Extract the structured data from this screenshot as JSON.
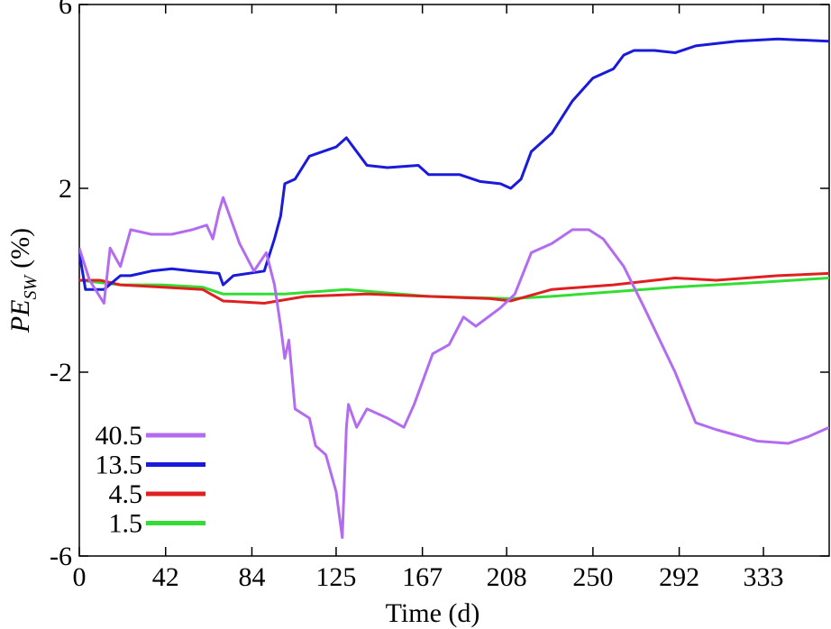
{
  "chart_data": {
    "type": "line",
    "xlabel": "Time (d)",
    "ylabel": {
      "main": "PE",
      "sub": "SW",
      "unit": "(%)"
    },
    "xlim": [
      0,
      365
    ],
    "ylim": [
      -6,
      6
    ],
    "xticks": [
      0,
      42,
      84,
      125,
      167,
      208,
      250,
      292,
      333
    ],
    "yticks": [
      6,
      2,
      -2,
      -6
    ],
    "legend": "lower left",
    "series": [
      {
        "name": "40.5",
        "color": "#b36cf0",
        "x": [
          0,
          5,
          12,
          15,
          20,
          25,
          35,
          45,
          55,
          62,
          65,
          68,
          70,
          74,
          78,
          85,
          91,
          95,
          98,
          100,
          102,
          105,
          112,
          115,
          120,
          125,
          128,
          130,
          131,
          135,
          140,
          150,
          158,
          163,
          172,
          180,
          187,
          193,
          205,
          212,
          220,
          230,
          240,
          248,
          255,
          265,
          275,
          290,
          300,
          310,
          330,
          345,
          355,
          365
        ],
        "values": [
          0.7,
          0.0,
          -0.5,
          0.7,
          0.3,
          1.1,
          1.0,
          1.0,
          1.1,
          1.2,
          0.9,
          1.5,
          1.8,
          1.3,
          0.8,
          0.2,
          0.6,
          -0.1,
          -1.0,
          -1.7,
          -1.3,
          -2.8,
          -3.0,
          -3.6,
          -3.8,
          -4.6,
          -5.6,
          -3.2,
          -2.7,
          -3.2,
          -2.8,
          -3.0,
          -3.2,
          -2.7,
          -1.6,
          -1.4,
          -0.8,
          -1.0,
          -0.6,
          -0.3,
          0.6,
          0.8,
          1.1,
          1.1,
          0.9,
          0.3,
          -0.6,
          -2.0,
          -3.1,
          -3.25,
          -3.5,
          -3.55,
          -3.4,
          -3.2
        ]
      },
      {
        "name": "13.5",
        "color": "#1a1adb",
        "x": [
          0,
          3,
          12,
          20,
          25,
          35,
          45,
          55,
          68,
          70,
          75,
          90,
          95,
          98,
          100,
          105,
          112,
          125,
          130,
          135,
          140,
          150,
          165,
          170,
          185,
          195,
          205,
          210,
          215,
          220,
          230,
          240,
          250,
          260,
          265,
          270,
          280,
          290,
          300,
          320,
          340,
          365
        ],
        "values": [
          0.6,
          -0.2,
          -0.2,
          0.1,
          0.1,
          0.2,
          0.25,
          0.2,
          0.15,
          -0.1,
          0.1,
          0.2,
          0.9,
          1.4,
          2.1,
          2.2,
          2.7,
          2.9,
          3.1,
          2.8,
          2.5,
          2.45,
          2.5,
          2.3,
          2.3,
          2.15,
          2.1,
          2.0,
          2.2,
          2.8,
          3.2,
          3.9,
          4.4,
          4.6,
          4.9,
          5.0,
          5.0,
          4.95,
          5.1,
          5.2,
          5.25,
          5.2
        ]
      },
      {
        "name": "4.5",
        "color": "#e02020",
        "x": [
          0,
          10,
          20,
          40,
          60,
          70,
          90,
          110,
          140,
          170,
          200,
          210,
          230,
          260,
          280,
          290,
          310,
          340,
          365
        ],
        "values": [
          0.0,
          0.0,
          -0.1,
          -0.15,
          -0.2,
          -0.45,
          -0.5,
          -0.35,
          -0.3,
          -0.35,
          -0.4,
          -0.45,
          -0.2,
          -0.1,
          0.0,
          0.05,
          0.0,
          0.1,
          0.15
        ]
      },
      {
        "name": "1.5",
        "color": "#33dd33",
        "x": [
          0,
          20,
          40,
          60,
          70,
          100,
          130,
          170,
          210,
          230,
          260,
          290,
          330,
          365
        ],
        "values": [
          0.0,
          -0.1,
          -0.1,
          -0.15,
          -0.3,
          -0.3,
          -0.2,
          -0.35,
          -0.4,
          -0.35,
          -0.25,
          -0.15,
          -0.05,
          0.05
        ]
      }
    ]
  }
}
